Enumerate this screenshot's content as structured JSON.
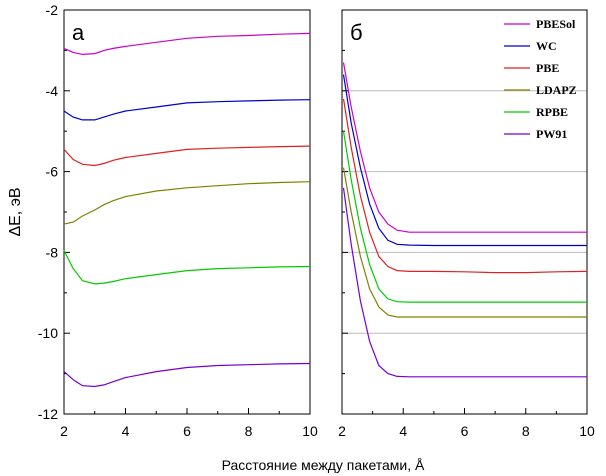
{
  "chart_data": [
    {
      "type": "line",
      "panel_label": "а",
      "xlim": [
        2,
        10
      ],
      "ylim": [
        -12,
        -2
      ],
      "x_ticks": [
        "2",
        "4",
        "6",
        "8",
        "10"
      ],
      "y_ticks": [
        "-2",
        "-4",
        "-6",
        "-8",
        "-10",
        "-12"
      ],
      "ylabel": "ΔE, эВ",
      "grid": false,
      "series": [
        {
          "name": "PBESol",
          "color": "#cc00cc",
          "x": [
            2,
            2.3,
            2.6,
            3,
            3.3,
            3.6,
            4,
            5,
            6,
            7,
            8,
            9,
            10
          ],
          "y": [
            -2.95,
            -3.05,
            -3.1,
            -3.08,
            -3.0,
            -2.95,
            -2.9,
            -2.8,
            -2.7,
            -2.65,
            -2.63,
            -2.6,
            -2.58
          ]
        },
        {
          "name": "WC",
          "color": "#0000cc",
          "x": [
            2,
            2.3,
            2.6,
            3,
            3.3,
            3.6,
            4,
            5,
            6,
            7,
            8,
            9,
            10
          ],
          "y": [
            -4.5,
            -4.65,
            -4.72,
            -4.72,
            -4.65,
            -4.58,
            -4.5,
            -4.4,
            -4.3,
            -4.27,
            -4.25,
            -4.23,
            -4.22
          ]
        },
        {
          "name": "PBE",
          "color": "#dd2222",
          "x": [
            2,
            2.3,
            2.6,
            3,
            3.3,
            3.6,
            4,
            5,
            6,
            7,
            8,
            9,
            10
          ],
          "y": [
            -5.45,
            -5.7,
            -5.82,
            -5.85,
            -5.8,
            -5.72,
            -5.65,
            -5.55,
            -5.45,
            -5.42,
            -5.4,
            -5.38,
            -5.37
          ]
        },
        {
          "name": "LDAPZ",
          "color": "#808000",
          "x": [
            2,
            2.3,
            2.6,
            3,
            3.3,
            3.6,
            4,
            5,
            6,
            7,
            8,
            9,
            10
          ],
          "y": [
            -7.3,
            -7.25,
            -7.1,
            -6.95,
            -6.82,
            -6.72,
            -6.62,
            -6.48,
            -6.4,
            -6.35,
            -6.3,
            -6.27,
            -6.25
          ]
        },
        {
          "name": "RPBE",
          "color": "#00cc00",
          "x": [
            2,
            2.3,
            2.6,
            3,
            3.3,
            3.6,
            4,
            5,
            6,
            7,
            8,
            9,
            10
          ],
          "y": [
            -7.95,
            -8.4,
            -8.7,
            -8.78,
            -8.76,
            -8.72,
            -8.65,
            -8.55,
            -8.45,
            -8.4,
            -8.38,
            -8.36,
            -8.35
          ]
        },
        {
          "name": "PW91",
          "color": "#7700cc",
          "x": [
            2,
            2.3,
            2.6,
            3,
            3.3,
            3.6,
            4,
            5,
            6,
            7,
            8,
            9,
            10
          ],
          "y": [
            -10.95,
            -11.15,
            -11.3,
            -11.32,
            -11.28,
            -11.2,
            -11.1,
            -10.95,
            -10.85,
            -10.8,
            -10.78,
            -10.76,
            -10.75
          ]
        }
      ]
    },
    {
      "type": "line",
      "panel_label": "б",
      "xlim": [
        2,
        10
      ],
      "ylim": [
        -12,
        -2
      ],
      "x_ticks": [
        "2",
        "4",
        "6",
        "8",
        "10"
      ],
      "grid": true,
      "legend": "top-right",
      "series": [
        {
          "name": "PBESol",
          "color": "#cc00cc",
          "x": [
            2.05,
            2.3,
            2.6,
            2.9,
            3.2,
            3.5,
            3.8,
            4.2,
            5,
            6,
            7,
            8,
            9,
            10
          ],
          "y": [
            -3.3,
            -4.4,
            -5.5,
            -6.4,
            -7.0,
            -7.3,
            -7.45,
            -7.5,
            -7.5,
            -7.5,
            -7.5,
            -7.5,
            -7.5,
            -7.5
          ]
        },
        {
          "name": "WC",
          "color": "#0000cc",
          "x": [
            2.05,
            2.3,
            2.6,
            2.9,
            3.2,
            3.5,
            3.8,
            4.2,
            5,
            6,
            7,
            8,
            9,
            10
          ],
          "y": [
            -3.6,
            -4.8,
            -5.9,
            -6.8,
            -7.4,
            -7.7,
            -7.8,
            -7.82,
            -7.83,
            -7.83,
            -7.83,
            -7.83,
            -7.83,
            -7.83
          ]
        },
        {
          "name": "PBE",
          "color": "#dd2222",
          "x": [
            2.05,
            2.3,
            2.6,
            2.9,
            3.2,
            3.5,
            3.8,
            4.2,
            5,
            6,
            7,
            8,
            9,
            10
          ],
          "y": [
            -4.2,
            -5.4,
            -6.6,
            -7.5,
            -8.1,
            -8.35,
            -8.45,
            -8.47,
            -8.47,
            -8.48,
            -8.5,
            -8.5,
            -8.48,
            -8.47
          ]
        },
        {
          "name": "LDAPZ",
          "color": "#808000",
          "x": [
            2.05,
            2.3,
            2.6,
            2.9,
            3.2,
            3.5,
            3.8,
            4.2,
            5,
            6,
            7,
            8,
            9,
            10
          ],
          "y": [
            -5.9,
            -7.0,
            -8.1,
            -8.9,
            -9.35,
            -9.55,
            -9.6,
            -9.6,
            -9.6,
            -9.6,
            -9.6,
            -9.6,
            -9.6,
            -9.6
          ]
        },
        {
          "name": "RPBE",
          "color": "#00cc00",
          "x": [
            2.05,
            2.3,
            2.6,
            2.9,
            3.2,
            3.5,
            3.8,
            4.2,
            5,
            6,
            7,
            8,
            9,
            10
          ],
          "y": [
            -5.0,
            -6.2,
            -7.4,
            -8.3,
            -8.9,
            -9.15,
            -9.22,
            -9.23,
            -9.23,
            -9.23,
            -9.23,
            -9.23,
            -9.23,
            -9.23
          ]
        },
        {
          "name": "PW91",
          "color": "#7700cc",
          "x": [
            2.05,
            2.3,
            2.6,
            2.9,
            3.2,
            3.5,
            3.8,
            4.2,
            5,
            6,
            7,
            8,
            9,
            10
          ],
          "y": [
            -6.4,
            -7.8,
            -9.2,
            -10.2,
            -10.8,
            -11.0,
            -11.07,
            -11.08,
            -11.08,
            -11.08,
            -11.08,
            -11.08,
            -11.08,
            -11.08
          ]
        }
      ]
    }
  ],
  "xlabel": "Расстояние между пакетами, Å"
}
